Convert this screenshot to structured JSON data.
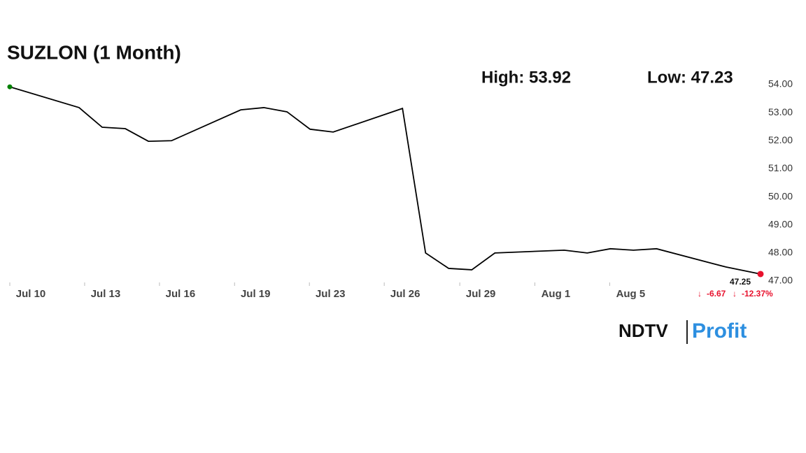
{
  "chart_data": {
    "type": "line",
    "title": "SUZLON (1 Month)",
    "high_label": "High: 53.92",
    "low_label": "Low: 47.23",
    "last_value_label": "47.25",
    "change_label": "-6.67",
    "change_pct_label": "-12.37%",
    "logo_left": "NDTV",
    "logo_right": "Profit",
    "x": [
      0,
      3,
      4,
      5,
      6,
      7,
      10,
      11,
      12,
      13,
      14,
      17,
      18,
      19,
      20,
      21,
      24,
      25,
      26,
      27,
      28,
      31,
      32.5
    ],
    "series": [
      {
        "color": "#000000",
        "values": [
          53.92,
          53.18,
          52.48,
          52.43,
          51.98,
          52.0,
          53.1,
          53.18,
          53.03,
          52.41,
          52.31,
          53.15,
          48.0,
          47.45,
          47.4,
          48.0,
          48.1,
          48.0,
          48.15,
          48.1,
          48.15,
          47.5,
          47.25
        ]
      }
    ],
    "xlim": [
      0,
      32.5
    ],
    "xticks": [
      {
        "value": 0,
        "label": "Jul 10"
      },
      {
        "value": 3.24,
        "label": "Jul 13"
      },
      {
        "value": 6.48,
        "label": "Jul 16"
      },
      {
        "value": 9.73,
        "label": "Jul 19"
      },
      {
        "value": 12.97,
        "label": "Jul 23"
      },
      {
        "value": 16.21,
        "label": "Jul 26"
      },
      {
        "value": 19.48,
        "label": "Jul 29"
      },
      {
        "value": 22.73,
        "label": "Aug 1"
      },
      {
        "value": 25.97,
        "label": "Aug 5"
      }
    ],
    "ylim": [
      47,
      54
    ],
    "yticks": [
      {
        "value": 47,
        "label": "47.00"
      },
      {
        "value": 48,
        "label": "48.00"
      },
      {
        "value": 49,
        "label": "49.00"
      },
      {
        "value": 50,
        "label": "50.00"
      },
      {
        "value": 51,
        "label": "51.00"
      },
      {
        "value": 52,
        "label": "52.00"
      },
      {
        "value": 53,
        "label": "53.00"
      },
      {
        "value": 54,
        "label": "54.00"
      }
    ],
    "start_color": "#008000",
    "end_color": "#e8112d"
  }
}
